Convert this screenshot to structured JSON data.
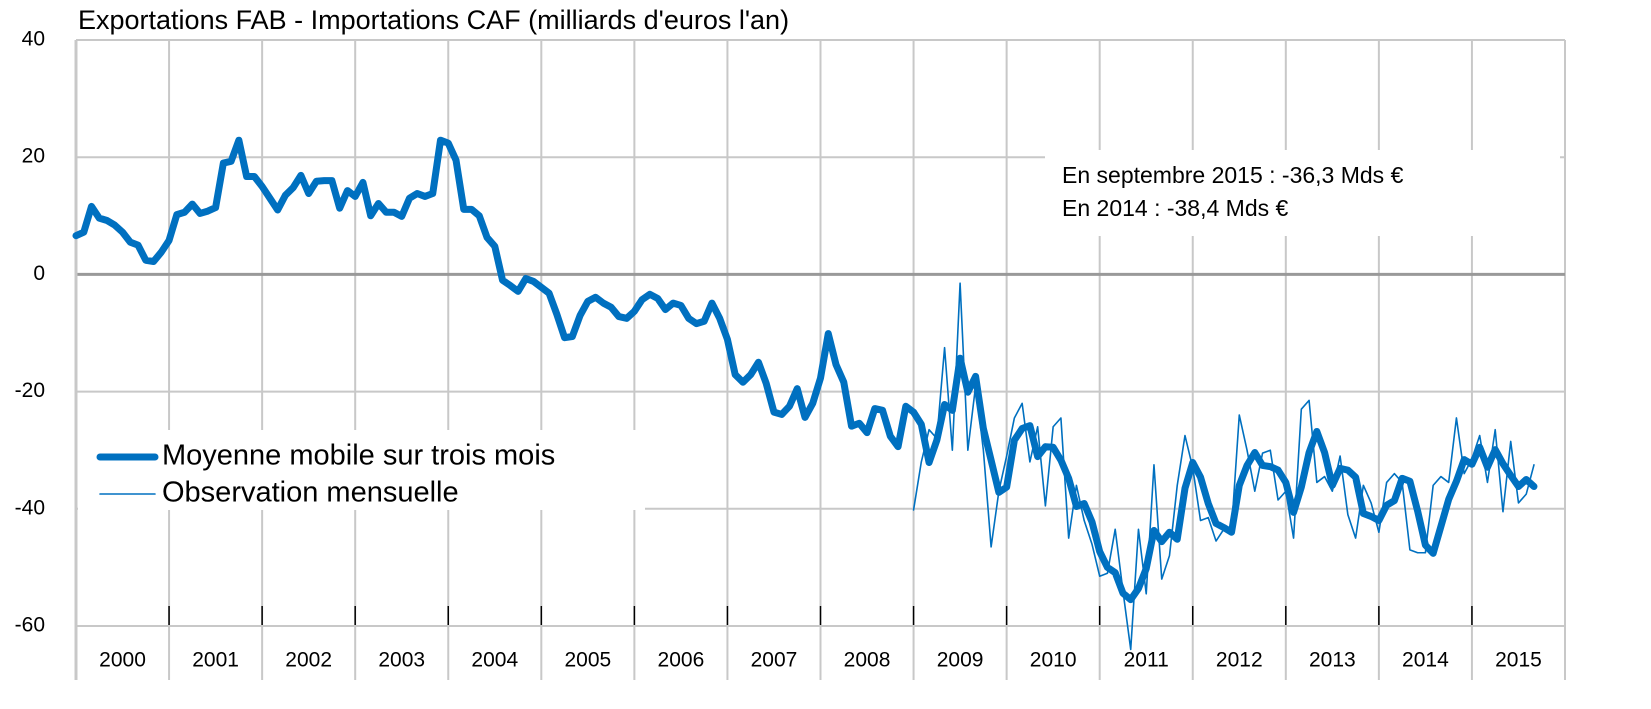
{
  "chart_data": {
    "type": "line",
    "title": "Exportations FAB - Importations CAF (milliards d'euros l'an)",
    "annotations": [
      "En septembre 2015 : -36,3 Mds €",
      "En 2014 : -38,4 Mds €"
    ],
    "categories": [
      "2000",
      null,
      null,
      null,
      null,
      null,
      null,
      null,
      null,
      null,
      null,
      null,
      "2001",
      null,
      null,
      null,
      null,
      null,
      null,
      null,
      null,
      null,
      null,
      null,
      "2002",
      null,
      null,
      null,
      null,
      null,
      null,
      null,
      null,
      null,
      null,
      null,
      "2003",
      null,
      null,
      null,
      null,
      null,
      null,
      null,
      null,
      null,
      null,
      null,
      "2004",
      null,
      null,
      null,
      null,
      null,
      null,
      null,
      null,
      null,
      null,
      null,
      "2005",
      null,
      null,
      null,
      null,
      null,
      null,
      null,
      null,
      null,
      null,
      null,
      "2006",
      null,
      null,
      null,
      null,
      null,
      null,
      null,
      null,
      null,
      null,
      null,
      "2007",
      null,
      null,
      null,
      null,
      null,
      null,
      null,
      null,
      null,
      null,
      null,
      "2008",
      null,
      null,
      null,
      null,
      null,
      null,
      null,
      null,
      null,
      null,
      null,
      "2009",
      null,
      null,
      null,
      null,
      null,
      null,
      null,
      null,
      null,
      null,
      null,
      "2010",
      null,
      null,
      null,
      null,
      null,
      null,
      null,
      null,
      null,
      null,
      null,
      "2011",
      null,
      null,
      null,
      null,
      null,
      null,
      null,
      null,
      null,
      null,
      null,
      "2012",
      null,
      null,
      null,
      null,
      null,
      null,
      null,
      null,
      null,
      null,
      null,
      "2013",
      null,
      null,
      null,
      null,
      null,
      null,
      null,
      null,
      null,
      null,
      null,
      "2014",
      null,
      null,
      null,
      null,
      null,
      null,
      null,
      null,
      null,
      null,
      null,
      "2015",
      null,
      null,
      null,
      null,
      null,
      null,
      null,
      null
    ],
    "series": [
      {
        "name": "Moyenne mobile sur trois mois",
        "color": "#0070c0",
        "values": [
          6.6,
          7.2,
          11.6,
          9.6,
          9.2,
          8.4,
          7.2,
          5.5,
          5,
          2.4,
          2.2,
          3.8,
          5.8,
          10.2,
          10.6,
          12,
          10.4,
          10.8,
          11.4,
          19,
          19.3,
          22.9,
          16.7,
          16.7,
          15,
          13,
          11,
          13.5,
          14.8,
          16.9,
          13.8,
          15.9,
          16,
          16,
          11.3,
          14.3,
          13.3,
          15.7,
          10,
          12.1,
          10.6,
          10.6,
          9.9,
          13,
          13.8,
          13.3,
          13.8,
          22.9,
          22.4,
          19.5,
          11.1,
          11.1,
          10,
          6.3,
          4.8,
          -1,
          -1.9,
          -2.9,
          -0.7,
          -1.2,
          -2.2,
          -3.2,
          -6.8,
          -10.8,
          -10.6,
          -7,
          -4.6,
          -3.9,
          -4.9,
          -5.6,
          -7.2,
          -7.5,
          -6.3,
          -4.3,
          -3.4,
          -4.1,
          -6,
          -4.9,
          -5.3,
          -7.5,
          -8.4,
          -8,
          -4.9,
          -7.5,
          -11.1,
          -17.1,
          -18.4,
          -17.1,
          -15,
          -18.6,
          -23.5,
          -23.9,
          -22.5,
          -19.5,
          -24.4,
          -22,
          -17.7,
          -10.1,
          -15.4,
          -18.4,
          -25.9,
          -25.4,
          -27,
          -22.9,
          -23.2,
          -27.6,
          -29.4,
          -22.5,
          -23.5,
          -25.6,
          -32.1,
          -28.3,
          -22.2,
          -23.2,
          -14.3,
          -20.1,
          -17.4,
          -26.3,
          -31.7,
          -37.2,
          -36.3,
          -28.3,
          -26.3,
          -25.8,
          -31.1,
          -29.4,
          -29.5,
          -31.7,
          -34.8,
          -39.6,
          -39.1,
          -42.2,
          -47.3,
          -50,
          -50.9,
          -54.4,
          -55.5,
          -53.6,
          -50.2,
          -43.7,
          -45.6,
          -44,
          -45.2,
          -36.5,
          -32.1,
          -34.6,
          -39.1,
          -42.5,
          -43.2,
          -44,
          -36,
          -32.6,
          -30.4,
          -32.6,
          -32.8,
          -33.4,
          -35.5,
          -40.6,
          -36.3,
          -30.4,
          -26.8,
          -30.4,
          -36,
          -33.1,
          -33.4,
          -34.6,
          -40.8,
          -41.3,
          -42,
          -39.4,
          -38.6,
          -34.8,
          -35.3,
          -40.4,
          -46.2,
          -47.6,
          -43,
          -38.4,
          -35.3,
          -31.6,
          -32.4,
          -29.5,
          -32.9,
          -29.9,
          -32.3,
          -34.3,
          -36.2,
          -35,
          -36.2
        ]
      },
      {
        "name": "Observation mensuelle",
        "color": "#0070c0",
        "values": [
          null,
          null,
          null,
          null,
          null,
          null,
          null,
          null,
          null,
          null,
          null,
          null,
          null,
          null,
          null,
          null,
          null,
          null,
          null,
          null,
          null,
          null,
          null,
          null,
          null,
          null,
          null,
          null,
          null,
          null,
          null,
          null,
          null,
          null,
          null,
          null,
          null,
          null,
          null,
          null,
          null,
          null,
          null,
          null,
          null,
          null,
          null,
          null,
          null,
          null,
          null,
          null,
          null,
          null,
          null,
          null,
          null,
          null,
          null,
          null,
          null,
          null,
          null,
          null,
          null,
          null,
          null,
          null,
          null,
          null,
          null,
          null,
          null,
          null,
          null,
          null,
          null,
          null,
          null,
          null,
          null,
          null,
          null,
          null,
          null,
          null,
          null,
          null,
          null,
          null,
          null,
          null,
          null,
          null,
          null,
          null,
          null,
          null,
          null,
          null,
          null,
          null,
          null,
          null,
          null,
          null,
          null,
          null,
          -40.2,
          -32,
          -26.5,
          -28,
          -12.5,
          -30,
          -1.5,
          -30,
          -19,
          -30,
          -46.5,
          -37,
          -31,
          -24.5,
          -22,
          -32,
          -26,
          -39.5,
          -26,
          -24.5,
          -45,
          -36,
          -42,
          -46,
          -51.5,
          -51,
          -43.5,
          -54,
          -64,
          -43.5,
          -54.5,
          -32.5,
          -52,
          -48,
          -36,
          -27.5,
          -33,
          -42,
          -41.5,
          -45.5,
          -43.5,
          -43.5,
          -24,
          -30,
          -37,
          -30.5,
          -30,
          -38.5,
          -37,
          -45,
          -23,
          -21.5,
          -35.5,
          -34.5,
          -37,
          -31,
          -41,
          -45,
          -36,
          -39,
          -44,
          -35.5,
          -34,
          -35.5,
          -47,
          -47.5,
          -47.5,
          -36,
          -34.5,
          -35.5,
          -24.5,
          -34,
          -31.5,
          -27.5,
          -35.5,
          -26.5,
          -40.5,
          -28.5,
          -39,
          -37.5,
          -32.5
        ]
      }
    ],
    "ylim": [
      -60,
      40
    ],
    "yticks": [
      -60,
      -40,
      -20,
      0,
      20,
      40
    ],
    "grid": true,
    "legend": "lower left"
  }
}
